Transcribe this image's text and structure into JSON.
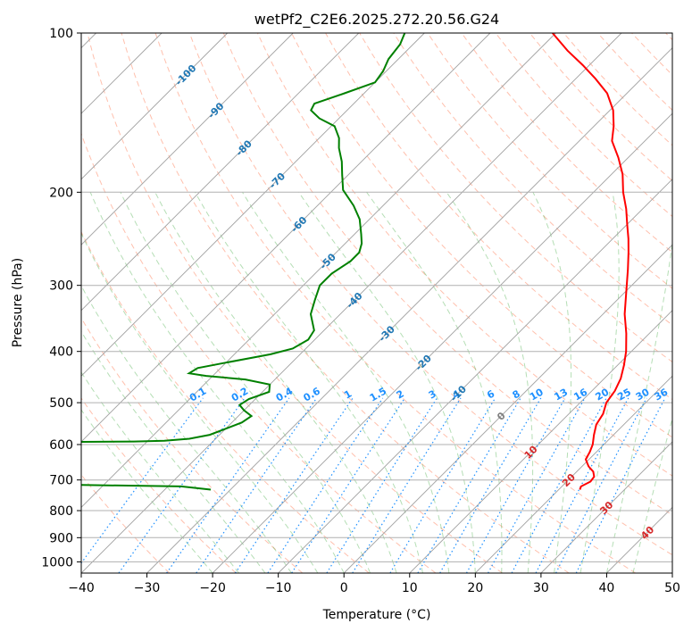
{
  "chart_data": {
    "type": "line",
    "title": "wetPf2_C2E6.2025.272.20.56.G24",
    "xlabel": "Temperature (°C)",
    "ylabel": "Pressure (hPa)",
    "xlim": [
      -40,
      50
    ],
    "ylim": [
      1050,
      100
    ],
    "y_scale": "log",
    "skew_deg": 45,
    "x_ticks": [
      "−40",
      "−30",
      "−20",
      "−10",
      "0",
      "10",
      "20",
      "30",
      "40",
      "50"
    ],
    "y_ticks": [
      "100",
      "200",
      "300",
      "400",
      "500",
      "600",
      "700",
      "800",
      "900",
      "1000"
    ],
    "grid": true,
    "series": [
      {
        "key": "temperature",
        "color": "#ff0000",
        "points": [
          [
            730,
            23.2
          ],
          [
            720,
            22.9
          ],
          [
            705,
            23.6
          ],
          [
            690,
            23.4
          ],
          [
            675,
            22.5
          ],
          [
            660,
            21.0
          ],
          [
            640,
            19.5
          ],
          [
            620,
            19.0
          ],
          [
            600,
            18.3
          ],
          [
            575,
            17.0
          ],
          [
            550,
            15.8
          ],
          [
            525,
            15.2
          ],
          [
            500,
            14.0
          ],
          [
            475,
            13.5
          ],
          [
            450,
            12.5
          ],
          [
            425,
            11.0
          ],
          [
            400,
            9.2
          ],
          [
            370,
            6.5
          ],
          [
            340,
            3.3
          ],
          [
            310,
            0.3
          ],
          [
            280,
            -3.0
          ],
          [
            260,
            -5.5
          ],
          [
            245,
            -7.6
          ],
          [
            230,
            -10.0
          ],
          [
            215,
            -12.5
          ],
          [
            200,
            -15.5
          ],
          [
            185,
            -18.3
          ],
          [
            172,
            -21.5
          ],
          [
            160,
            -25.0
          ],
          [
            150,
            -27.0
          ],
          [
            140,
            -29.5
          ],
          [
            130,
            -33.0
          ],
          [
            122,
            -37.0
          ],
          [
            115,
            -41.0
          ],
          [
            108,
            -45.5
          ],
          [
            100,
            -50.5
          ]
        ]
      },
      {
        "key": "dewpoint",
        "color": "#008000",
        "points": [
          [
            730,
            -33.0
          ],
          [
            720,
            -38.0
          ],
          [
            713,
            -62.0
          ],
          [
            711,
            -90.0
          ],
          [
            596,
            -90.0
          ],
          [
            592,
            -52.0
          ],
          [
            590,
            -47.5
          ],
          [
            585,
            -44.0
          ],
          [
            575,
            -41.5
          ],
          [
            560,
            -40.0
          ],
          [
            545,
            -38.5
          ],
          [
            530,
            -38.0
          ],
          [
            517,
            -40.0
          ],
          [
            505,
            -41.5
          ],
          [
            492,
            -41.0
          ],
          [
            477,
            -39.0
          ],
          [
            462,
            -40.0
          ],
          [
            452,
            -44.5
          ],
          [
            445,
            -51.0
          ],
          [
            440,
            -54.0
          ],
          [
            430,
            -53.5
          ],
          [
            420,
            -50.0
          ],
          [
            405,
            -44.5
          ],
          [
            395,
            -42.0
          ],
          [
            380,
            -41.0
          ],
          [
            365,
            -41.5
          ],
          [
            340,
            -44.5
          ],
          [
            320,
            -46.0
          ],
          [
            300,
            -47.5
          ],
          [
            285,
            -47.5
          ],
          [
            270,
            -46.5
          ],
          [
            260,
            -46.5
          ],
          [
            250,
            -47.5
          ],
          [
            240,
            -49.0
          ],
          [
            225,
            -51.5
          ],
          [
            212,
            -54.5
          ],
          [
            198,
            -58.5
          ],
          [
            185,
            -61.0
          ],
          [
            175,
            -63.0
          ],
          [
            165,
            -65.5
          ],
          [
            158,
            -67.0
          ],
          [
            150,
            -69.5
          ],
          [
            145,
            -73.0
          ],
          [
            140,
            -75.5
          ],
          [
            136,
            -76.0
          ],
          [
            130,
            -73.0
          ],
          [
            124,
            -70.0
          ],
          [
            118,
            -70.5
          ],
          [
            112,
            -71.5
          ],
          [
            105,
            -72.0
          ],
          [
            100,
            -73.0
          ]
        ]
      }
    ],
    "mixing_ratio_lines": {
      "color": "#1e90ff",
      "style": "dotted",
      "label_pressure": 500,
      "values": [
        0.1,
        0.2,
        0.4,
        0.6,
        1,
        1.5,
        2,
        3,
        4,
        6,
        8,
        10,
        13,
        16,
        20,
        25,
        30,
        36
      ],
      "labels": [
        "0.1",
        "0.2",
        "0.4",
        "0.6",
        "1",
        "1.5",
        "2",
        "3",
        "4",
        "6",
        "8",
        "10",
        "13",
        "16",
        "20",
        "25",
        "30",
        "36"
      ]
    },
    "isotherm_labels": {
      "color": "#1f77b4",
      "items": [
        {
          "t": -100,
          "p": 120,
          "label": "-100"
        },
        {
          "t": -90,
          "p": 140,
          "label": "-90"
        },
        {
          "t": -80,
          "p": 165,
          "label": "-80"
        },
        {
          "t": -70,
          "p": 190,
          "label": "-70"
        },
        {
          "t": -60,
          "p": 230,
          "label": "-60"
        },
        {
          "t": -50,
          "p": 270,
          "label": "-50"
        },
        {
          "t": -40,
          "p": 320,
          "label": "-40"
        },
        {
          "t": -30,
          "p": 370,
          "label": "-30"
        },
        {
          "t": -20,
          "p": 420,
          "label": "-20"
        },
        {
          "t": -10,
          "p": 480,
          "label": "-10"
        }
      ]
    },
    "positive_temp_labels": {
      "zero_color": "#808080",
      "warm_color": "#d62728",
      "items": [
        {
          "t": 0,
          "p": 530,
          "label": "0"
        },
        {
          "t": 10,
          "p": 620,
          "label": "10"
        },
        {
          "t": 20,
          "p": 700,
          "label": "20"
        },
        {
          "t": 30,
          "p": 790,
          "label": "30"
        },
        {
          "t": 40,
          "p": 880,
          "label": "40"
        }
      ]
    },
    "dry_adiabat_color": "#ff8c69",
    "moist_adiabat_color": "#2ca02c",
    "isotherm_color": "#a0a0a0",
    "isobar_color": "#b0b0b0"
  }
}
